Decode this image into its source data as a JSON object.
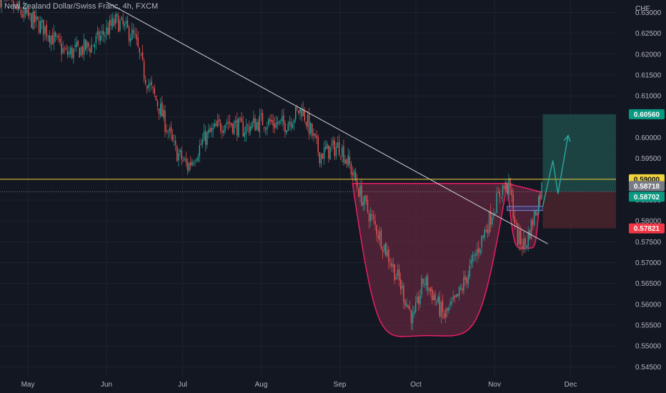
{
  "title": "New Zealand Dollar/Swiss Franc, 4h, FXCM",
  "colors": {
    "background": "#131722",
    "grid": "#1e222d",
    "up": "#26a69a",
    "down": "#ef5350",
    "trendline": "#d1d4dc",
    "resistance": "#f0d33a",
    "cup_fill": "#7a2945",
    "cup_stroke": "#e91e63",
    "target_zone": "#1e4a48",
    "stop_zone": "#4a232b",
    "arrow": "#26a69a"
  },
  "chart_data": {
    "type": "candlestick",
    "symbol": "New Zealand Dollar/Swiss Franc",
    "timeframe": "4h",
    "source": "FXCM",
    "currency_label": "CHF",
    "ylim": [
      0.5425,
      0.633
    ],
    "y_ticks": [
      "0.63000",
      "0.62500",
      "0.62000",
      "0.61500",
      "0.61000",
      "0.60500",
      "0.60000",
      "0.59500",
      "0.59000",
      "0.58500",
      "0.58000",
      "0.57500",
      "0.57000",
      "0.56500",
      "0.56000",
      "0.55500",
      "0.55000",
      "0.54500"
    ],
    "x_ticks": [
      "May",
      "Jun",
      "Jul",
      "Aug",
      "Sep",
      "Oct",
      "Nov",
      "Dec"
    ],
    "price_path": [
      {
        "t": "2023-04-20",
        "p": 0.6335
      },
      {
        "t": "2023-04-28",
        "p": 0.63
      },
      {
        "t": "2023-05-08",
        "p": 0.626
      },
      {
        "t": "2023-05-16",
        "p": 0.62
      },
      {
        "t": "2023-05-26",
        "p": 0.622
      },
      {
        "t": "2023-06-05",
        "p": 0.628
      },
      {
        "t": "2023-06-12",
        "p": 0.624
      },
      {
        "t": "2023-06-16",
        "p": 0.615
      },
      {
        "t": "2023-06-22",
        "p": 0.607
      },
      {
        "t": "2023-06-28",
        "p": 0.597
      },
      {
        "t": "2023-07-03",
        "p": 0.593
      },
      {
        "t": "2023-07-10",
        "p": 0.6
      },
      {
        "t": "2023-07-18",
        "p": 0.604
      },
      {
        "t": "2023-07-25",
        "p": 0.602
      },
      {
        "t": "2023-08-01",
        "p": 0.604
      },
      {
        "t": "2023-08-10",
        "p": 0.603
      },
      {
        "t": "2023-08-17",
        "p": 0.607
      },
      {
        "t": "2023-08-24",
        "p": 0.596
      },
      {
        "t": "2023-09-01",
        "p": 0.598
      },
      {
        "t": "2023-09-05",
        "p": 0.593
      },
      {
        "t": "2023-09-10",
        "p": 0.585
      },
      {
        "t": "2023-09-17",
        "p": 0.576
      },
      {
        "t": "2023-09-24",
        "p": 0.566
      },
      {
        "t": "2023-09-30",
        "p": 0.556
      },
      {
        "t": "2023-10-04",
        "p": 0.566
      },
      {
        "t": "2023-10-08",
        "p": 0.562
      },
      {
        "t": "2023-10-12",
        "p": 0.557
      },
      {
        "t": "2023-10-17",
        "p": 0.561
      },
      {
        "t": "2023-10-24",
        "p": 0.571
      },
      {
        "t": "2023-10-31",
        "p": 0.582
      },
      {
        "t": "2023-11-04",
        "p": 0.588
      },
      {
        "t": "2023-11-07",
        "p": 0.588
      },
      {
        "t": "2023-11-10",
        "p": 0.576
      },
      {
        "t": "2023-11-13",
        "p": 0.574
      },
      {
        "t": "2023-11-17",
        "p": 0.582
      },
      {
        "t": "2023-11-20",
        "p": 0.589
      }
    ],
    "trendline": [
      {
        "t": "2023-06-01",
        "p": 0.6325
      },
      {
        "t": "2023-11-22",
        "p": 0.5745
      }
    ],
    "resistance_level": 0.59,
    "current_level": 0.58702,
    "cup": {
      "start": {
        "t": "2023-09-06",
        "p": 0.589
      },
      "bottom": {
        "t": "2023-10-05",
        "p": 0.5525
      },
      "end": {
        "t": "2023-11-06",
        "p": 0.589
      }
    },
    "handle": {
      "start": {
        "t": "2023-11-06",
        "p": 0.589
      },
      "bottom": {
        "t": "2023-11-14",
        "p": 0.5735
      },
      "end": {
        "t": "2023-11-19",
        "p": 0.587
      }
    },
    "handle_box": {
      "t0": "2023-11-06",
      "t1": "2023-11-20",
      "p0": 0.5825,
      "p1": 0.5835
    },
    "position": {
      "t0": "2023-11-20",
      "t1": "2023-12-20",
      "entry": 0.58702,
      "target": 0.6056,
      "stop": 0.57821
    },
    "projection_path": [
      {
        "t": "2023-11-20",
        "p": 0.5835
      },
      {
        "t": "2023-11-24",
        "p": 0.5945
      },
      {
        "t": "2023-11-26",
        "p": 0.5865
      },
      {
        "t": "2023-11-30",
        "p": 0.6005
      }
    ],
    "price_tags": [
      {
        "value": "0.60560",
        "level": 0.6056,
        "kind": "target"
      },
      {
        "value": "0.59000",
        "level": 0.59,
        "kind": "resistance"
      },
      {
        "value": "0.58718",
        "level": 0.58718,
        "kind": "ask"
      },
      {
        "value": "0.58702",
        "level": 0.58702,
        "kind": "current"
      },
      {
        "value": "0.57821",
        "level": 0.57821,
        "kind": "stop"
      }
    ]
  }
}
